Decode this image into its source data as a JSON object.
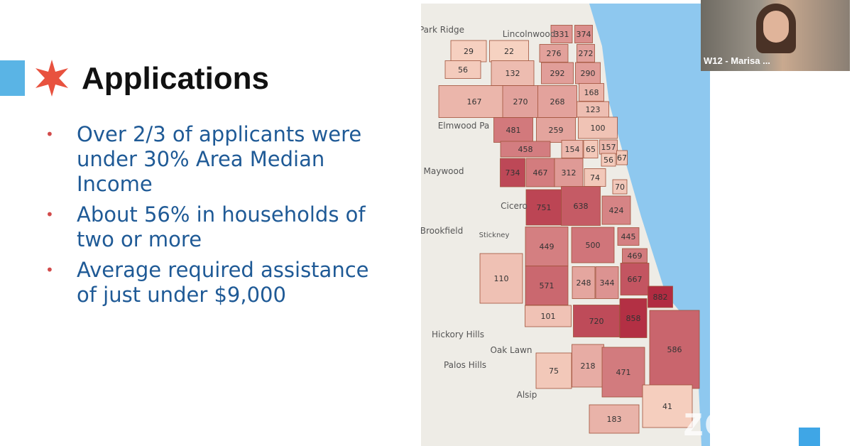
{
  "slide": {
    "title": "Applications",
    "bullets": [
      "Over 2/3 of applicants were under 30% Area Median Income",
      "About 56% in households of two or more",
      "Average required assistance of just under $9,000"
    ]
  },
  "map": {
    "places": [
      "Park Ridge",
      "Lincolnwood",
      "Elmwood Pa",
      "Maywood",
      "Cicero",
      "Brookfield",
      "Stickney",
      "Hickory Hills",
      "Oak Lawn",
      "Palos Hills",
      "Alsip"
    ],
    "regions": [
      331,
      374,
      276,
      272,
      29,
      22,
      56,
      132,
      292,
      290,
      168,
      167,
      270,
      268,
      123,
      481,
      259,
      100,
      458,
      154,
      65,
      157,
      67,
      56,
      734,
      467,
      312,
      74,
      70,
      751,
      638,
      424,
      445,
      449,
      500,
      469,
      110,
      571,
      248,
      344,
      667,
      882,
      101,
      720,
      858,
      586,
      75,
      218,
      471,
      41,
      183
    ]
  },
  "video": {
    "participant": "W12 - Marisa ...",
    "watermark": "zoom"
  }
}
